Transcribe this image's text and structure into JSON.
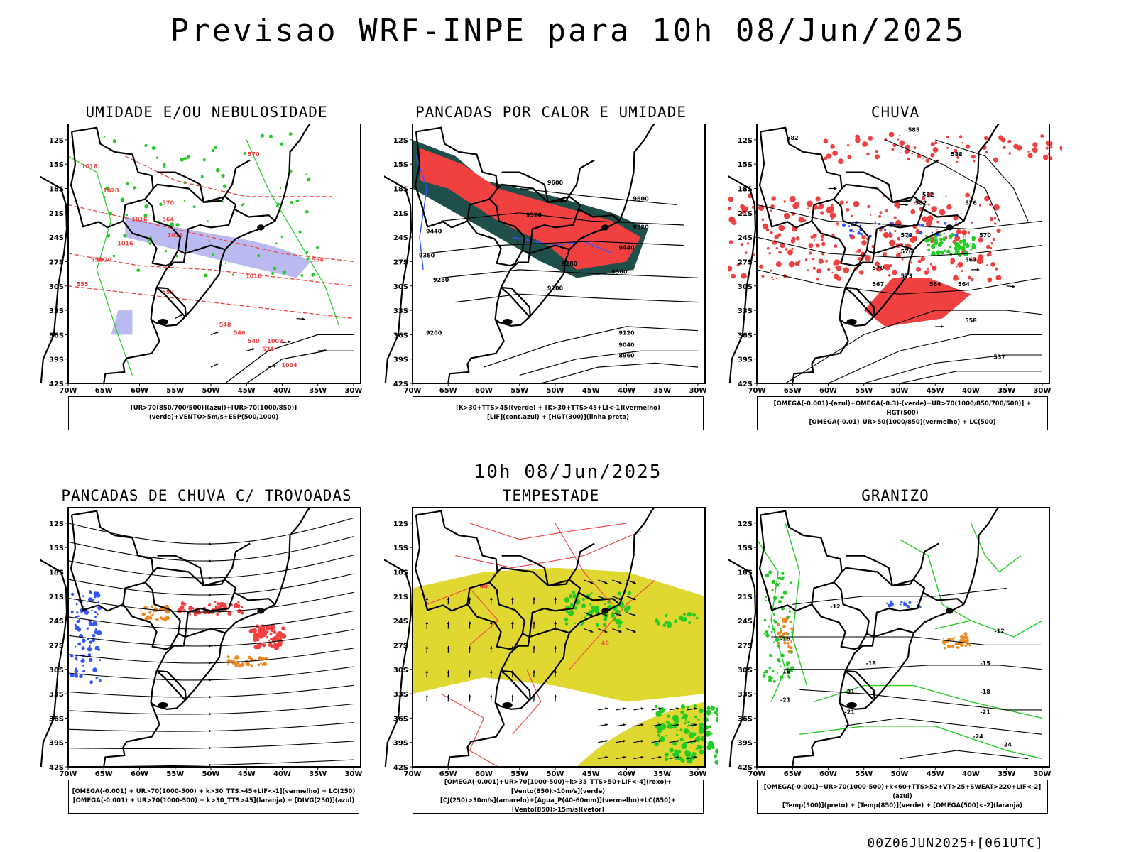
{
  "header": {
    "title": "Previsao WRF-INPE  para 10h 08/Jun/2025"
  },
  "middle": {
    "datetime": "10h 08/Jun/2025"
  },
  "footer": {
    "run_stamp": "00Z06JUN2025+[061UTC]"
  },
  "axes": {
    "lat_labels": [
      "12S",
      "15S",
      "18S",
      "21S",
      "24S",
      "27S",
      "30S",
      "33S",
      "36S",
      "39S",
      "42S"
    ],
    "lon_labels": [
      "70W",
      "65W",
      "60W",
      "55W",
      "50W",
      "45W",
      "40W",
      "35W",
      "30W"
    ]
  },
  "colors": {
    "red": "#f04040",
    "green": "#22cc22",
    "blue": "#3355ff",
    "purple": "#a9a9ee",
    "orange": "#ee8822",
    "yellow": "#e0d830",
    "teal": "#1f4f4a",
    "black": "#000000"
  },
  "panels": [
    {
      "id": "umidade",
      "title": "UMIDADE E/OU NEBULOSIDADE",
      "legend": [
        "[UR>70(850/700/500)](azul)+[UR>70(1000/850)](verde)+VENTO>5m/s+ESP(500/1000)"
      ],
      "contour_labels": [
        "1016",
        "1020",
        "1016",
        "1016",
        "1016",
        "1020",
        "1016",
        "1008",
        "1004",
        "570",
        "570",
        "564",
        "558",
        "555",
        "552",
        "548",
        "546",
        "540",
        "534",
        "558"
      ]
    },
    {
      "id": "pancadas-calor",
      "title": "PANCADAS POR CALOR E UMIDADE",
      "legend": [
        "[K>30+TTS>45](verde) + [K>30+TTS>45+LI<-1](vermelho)",
        "[LIF](cont.azul) + [HGT(300)](linha preta)"
      ],
      "contour_labels": [
        "9600",
        "9520",
        "9440",
        "9360",
        "9280",
        "9200",
        "9600",
        "9520",
        "9440",
        "9360",
        "9120",
        "9040",
        "8960",
        "9280",
        "9200"
      ]
    },
    {
      "id": "chuva",
      "title": "CHUVA",
      "legend": [
        "[OMEGA(-0.001)-(azul)+OMEGA(-0.3)-(verde)+UR>70(1000/850/700/500)] + HGT(500)",
        "[OMEGA(-0.01)_UR>50(1000/850)(vermelho) + LC(500)"
      ],
      "contour_labels": [
        "582",
        "585",
        "588",
        "582",
        "579",
        "576",
        "573",
        "570",
        "567",
        "564",
        "558",
        "537",
        "582",
        "576",
        "570",
        "567",
        "564"
      ]
    },
    {
      "id": "pancadas-trovoadas",
      "title": "PANCADAS DE CHUVA C/ TROVOADAS",
      "legend": [
        "[OMEGA(-0.001) + UR>70(1000-500) + k>30_TTS>45+LIF<-1](vermelho) + LC(250)",
        "[OMEGA(-0.001) + UR>70(1000-500) + k>30_TTS>45](laranja) + [DIVG(250)](azul)"
      ],
      "contour_labels": []
    },
    {
      "id": "tempestade",
      "title": "TEMPESTADE",
      "legend": [
        "[OMEGA(-0.001)+UR>70(1000-500)+k>35_TTS>50+LIF<-4](roxo)+[Vento(850)>10m/s](verde)",
        "[CJ(250)>30m/s](amarelo)+[Agua_P(40-60mm)](vermelho)+LC(850)+[Vento(850)>15m/s](vetor)"
      ],
      "contour_labels": [
        "40",
        "40"
      ]
    },
    {
      "id": "granizo",
      "title": "GRANIZO",
      "legend": [
        "[OMEGA(-0.001)+UR>70(1000-500)+k<60+TTS>52+VT>25+SWEAT>220+LIF<-2](azul)",
        "[Temp(500)](preto) + [Temp(850)](verde) + [OMEGA(500)<-2](laranja)"
      ],
      "contour_labels": [
        "-12",
        "-15",
        "-18",
        "-18",
        "-21",
        "-21",
        "-21",
        "-24",
        "-15",
        "-18",
        "-21",
        "-24",
        "-12"
      ]
    }
  ]
}
